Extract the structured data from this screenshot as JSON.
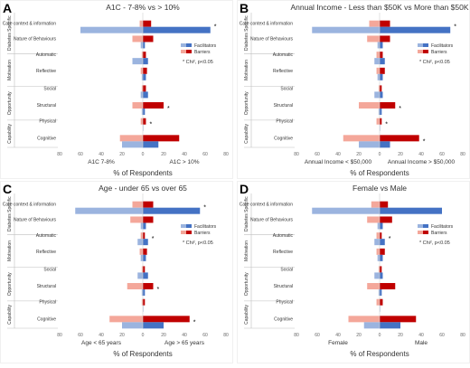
{
  "legend_labels": {
    "facilitators": "Facilitators",
    "barriers": "Barriers"
  },
  "significance_note": "* Chi², p<0.05",
  "significance_marker": "*",
  "x_axis_title": "% of Respondents",
  "x_ticks": [
    "80",
    "60",
    "40",
    "20",
    "0",
    "20",
    "40",
    "60",
    "80"
  ],
  "colors": {
    "facilitator_light": "#9bb4df",
    "facilitator_dark": "#4472c4",
    "barrier_light": "#f4a79a",
    "barrier_dark": "#c00000",
    "group_line": "#bfbfbf",
    "text": "#333333"
  },
  "categories": [
    {
      "group": "Diabetes Specific",
      "items": [
        "Care context & information",
        "Nature of Behaviours"
      ]
    },
    {
      "group": "Motivation",
      "items": [
        "Automatic",
        "Reflective"
      ]
    },
    {
      "group": "Opportunity",
      "items": [
        "Social",
        "Structural"
      ]
    },
    {
      "group": "Capability",
      "items": [
        "Physical",
        "Cognitive"
      ]
    }
  ],
  "chart_data": [
    {
      "type": "bar",
      "panel_letter": "A",
      "title": "A1C - 7-8% vs > 10%",
      "group_left": "A1C 7-8%",
      "group_right": "A1C > 10%",
      "xlim": [
        -80,
        80
      ],
      "categories": [
        "Care context & information",
        "Nature of Behaviours",
        "Automatic",
        "Reflective",
        "Social",
        "Structural",
        "Physical",
        "Cognitive"
      ],
      "series": [
        {
          "name": "Barriers",
          "group": "A1C 7-8%",
          "values": [
            -3,
            -10,
            -1,
            -2,
            -1,
            -10,
            -2,
            -22
          ]
        },
        {
          "name": "Barriers",
          "group": "A1C > 10%",
          "values": [
            8,
            10,
            3,
            4,
            3,
            20,
            3,
            35
          ]
        },
        {
          "name": "Facilitators",
          "group": "A1C 7-8%",
          "values": [
            -60,
            -2,
            -10,
            -1,
            -2,
            -1,
            0,
            -20
          ]
        },
        {
          "name": "Facilitators",
          "group": "A1C > 10%",
          "values": [
            65,
            2,
            5,
            3,
            5,
            2,
            0,
            15
          ]
        }
      ],
      "significant": [
        true,
        false,
        false,
        false,
        false,
        true,
        true,
        false
      ]
    },
    {
      "type": "bar",
      "panel_letter": "B",
      "title": "Annual Income - Less than $50K vs More than $50K",
      "group_left": "Annual Income < $50,000",
      "group_right": "Annual Income > $50,000",
      "xlim": [
        -80,
        80
      ],
      "categories": [
        "Care context & information",
        "Nature of Behaviours",
        "Automatic",
        "Reflective",
        "Social",
        "Structural",
        "Physical",
        "Cognitive"
      ],
      "series": [
        {
          "name": "Barriers",
          "group": "Annual Income < $50,000",
          "values": [
            -10,
            -12,
            -3,
            -3,
            -1,
            -20,
            -3,
            -35
          ]
        },
        {
          "name": "Barriers",
          "group": "Annual Income > $50,000",
          "values": [
            10,
            10,
            3,
            5,
            2,
            15,
            2,
            38
          ]
        },
        {
          "name": "Facilitators",
          "group": "Annual Income < $50,000",
          "values": [
            -65,
            -2,
            -5,
            -2,
            -5,
            -1,
            0,
            -20
          ]
        },
        {
          "name": "Facilitators",
          "group": "Annual Income > $50,000",
          "values": [
            68,
            3,
            5,
            3,
            3,
            2,
            0,
            10
          ]
        }
      ],
      "significant": [
        true,
        false,
        false,
        false,
        false,
        true,
        true,
        true
      ]
    },
    {
      "type": "bar",
      "panel_letter": "C",
      "title": "Age - under 65 vs over 65",
      "group_left": "Age < 65 years",
      "group_right": "Age > 65 years",
      "xlim": [
        -80,
        80
      ],
      "categories": [
        "Care context & information",
        "Nature of Behaviours",
        "Automatic",
        "Reflective",
        "Social",
        "Structural",
        "Physical",
        "Cognitive"
      ],
      "series": [
        {
          "name": "Barriers",
          "group": "Age < 65 years",
          "values": [
            -10,
            -12,
            -2,
            -3,
            -1,
            -15,
            -1,
            -32
          ]
        },
        {
          "name": "Barriers",
          "group": "Age > 65 years",
          "values": [
            10,
            10,
            2,
            4,
            2,
            10,
            2,
            45
          ]
        },
        {
          "name": "Facilitators",
          "group": "Age < 65 years",
          "values": [
            -65,
            -2,
            -5,
            -2,
            -5,
            -1,
            0,
            -20
          ]
        },
        {
          "name": "Facilitators",
          "group": "Age > 65 years",
          "values": [
            55,
            3,
            5,
            3,
            5,
            2,
            0,
            20
          ]
        }
      ],
      "significant": [
        true,
        false,
        true,
        false,
        false,
        true,
        false,
        true
      ]
    },
    {
      "type": "bar",
      "panel_letter": "D",
      "title": "Female vs Male",
      "group_left": "Female",
      "group_right": "Male",
      "xlim": [
        -80,
        80
      ],
      "categories": [
        "Care context & information",
        "Nature of Behaviours",
        "Automatic",
        "Reflective",
        "Social",
        "Structural",
        "Physical",
        "Cognitive"
      ],
      "series": [
        {
          "name": "Barriers",
          "group": "Female",
          "values": [
            -8,
            -12,
            -3,
            -3,
            -1,
            -12,
            -3,
            -30
          ]
        },
        {
          "name": "Barriers",
          "group": "Male",
          "values": [
            8,
            12,
            2,
            5,
            2,
            15,
            3,
            35
          ]
        },
        {
          "name": "Facilitators",
          "group": "Female",
          "values": [
            -65,
            -2,
            -5,
            -2,
            -5,
            -1,
            0,
            -15
          ]
        },
        {
          "name": "Facilitators",
          "group": "Male",
          "values": [
            60,
            3,
            5,
            3,
            3,
            2,
            0,
            20
          ]
        }
      ],
      "significant": [
        false,
        false,
        true,
        false,
        false,
        false,
        false,
        false
      ]
    }
  ]
}
